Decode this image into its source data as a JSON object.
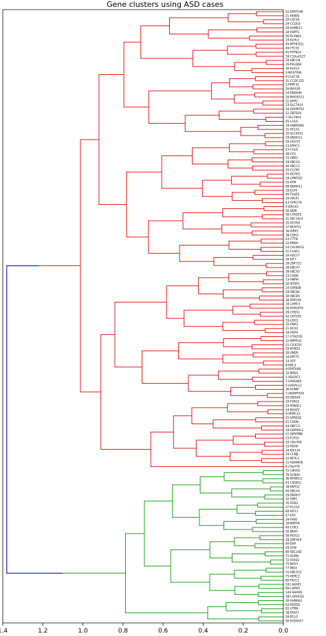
{
  "chart_data": {
    "type": "dendrogram",
    "title": "Gene clusters using ASD cases",
    "orientation": "left",
    "xlim": [
      1.4,
      0.0
    ],
    "x_ticks": [
      1.4,
      1.2,
      1.0,
      0.8,
      0.6,
      0.4,
      0.2,
      0.0
    ],
    "x_tick_labels": [
      "1.4",
      "1.2",
      "1.0",
      "0.8",
      "0.6",
      "0.4",
      "0.2",
      "0.0"
    ],
    "root_height": 1.38,
    "colors": {
      "cluster_red": "#e31a1c",
      "cluster_green": "#1f9e1f",
      "link_above_threshold": "#1f1fd0"
    },
    "clusters": [
      {
        "color": "red",
        "height": 1.22,
        "leaves": [
          "52-EPATCH8",
          "21-HEBP2",
          "20-CSF2R",
          "29-CCDC8",
          "29-SAMD11",
          "34-ASMTL",
          "56-PLXNA2",
          "19-KLHL5",
          "49-MTHFD1L",
          "49-TTC35",
          "45-PTPN14",
          "18-C10orf127",
          "20-ABCG8",
          "35-PHLDB2",
          "30-KLK14",
          "3-NOSTRIN",
          "9-CLEC16",
          "31-CCDC155",
          "2-PRPF31",
          "26-NAA38",
          "24-ENDASE",
          "28-MAGEA11",
          "21-DPP3",
          "13-SLC7A14",
          "34-ADAMTS2",
          "22-ZBTB20",
          "7-SLC29A2",
          "45-CUL9",
          "19-ANKRD60",
          "31-HCLS1",
          "35-SLC45A1",
          "19-DNAH11",
          "59-UGGT2",
          "23-EPHC1",
          "43-CUL9",
          "38-CA1",
          "15-UBR1",
          "18-ABCA2",
          "46-ABCC2",
          "20-CLCN1",
          "70-DCHS1",
          "18-LMNTD2",
          "55-ATM",
          "68-DNAH11",
          "18-ELP4",
          "46-TSHZ3",
          "29-APLP1",
          "43-GPR179",
          "5-DRGX1",
          "56-DDN",
          "30-CTAGE5",
          "31-SEC14L4",
          "35-DCHS2",
          "37-NLRP11",
          "36-XIRP2",
          "38-CDH3",
          "43-CTTN",
          "22-PM6A",
          "54-CACNA1S",
          "21-CASE1",
          "20-ADCY7",
          "30-KIF7",
          "28-ZNF721",
          "38-ABCA7",
          "38-ABCA5",
          "23-CHD8",
          "13-AMPH",
          "26-NTSR1",
          "24-GRIN3B",
          "29-SBCB4",
          "30-ABCB4",
          "38-PPP1R9",
          "18-LAMC3",
          "26-RAPGEF6",
          "28-CHD1L",
          "42-CEP350",
          "19-LRIG1",
          "35-ANK3",
          "21-DCX2",
          "18-ASPH",
          "17-CYSLTR2",
          "32-MRPS31",
          "21-CX3CR1",
          "29-KCND3",
          "30-ANDS",
          "14-KRT71",
          "14-AGT",
          "8-EML3",
          "9-SPATA4B",
          "32-MED1",
          "5-ADGRF1",
          "7-FAM186A",
          "5-AADACL2",
          "36-AUNIP",
          "7-ADAMTS20",
          "20-DDX49",
          "19-TSPO2",
          "24-KANSL1",
          "24-BAAP3",
          "9-ARMC12",
          "25-SPRED2",
          "41-CDSN",
          "44-ABCC3",
          "18-ADPRHL1",
          "22-SERPINB",
          "23-TLR10",
          "20-C8orf58",
          "33-PDHX",
          "34-KIF13A",
          "29-CCNJL",
          "22-NFXL1",
          "11-ADAMO8",
          "6-C9orf76"
        ]
      },
      {
        "color": "green",
        "height": 1.1,
        "leaves": [
          "72-CMYA5",
          "76-SCN4A",
          "36-MYBPC2",
          "43-CSDE1L",
          "38-KMT2C",
          "60-ABCA4",
          "29-DNAH7",
          "32-AIM1",
          "35-SGK3",
          "37-PLCG2",
          "60-KIF11",
          "47-EPX",
          "29-FAN1",
          "39-MERTK",
          "40-CAR3",
          "50-NRXY",
          "56-RGS11",
          "28-ZNF429",
          "46-DSP",
          "49-ZAN",
          "80-SEC24D",
          "75-AGRN",
          "72-FRAS1",
          "75-NAV3",
          "77-NID2",
          "55-ABCA13",
          "75-HERC2",
          "80-TACC2",
          "101-AKAP1",
          "69-LAMA5",
          "149-SHRM3",
          "187-GRHC62",
          "30-AHNAK2",
          "63-PDZD2",
          "81-UTRN",
          "38-TRAF1",
          "59-PCLO",
          "90-PLEKHA7"
        ]
      }
    ]
  }
}
